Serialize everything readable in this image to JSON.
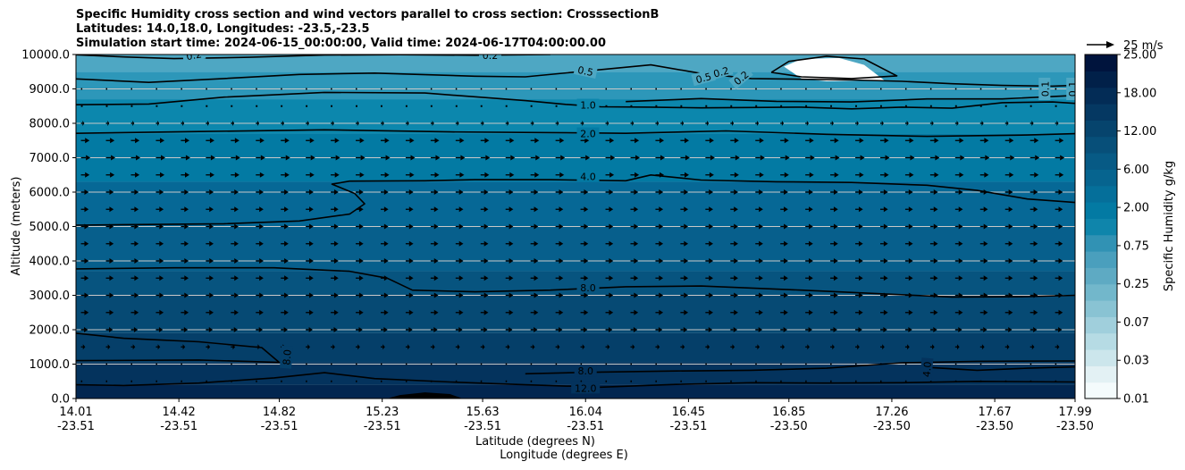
{
  "chart_data": {
    "type": "heatmap",
    "title_lines": [
      "Specific Humidity cross section and wind vectors parallel to cross section: CrosssectionB",
      "Latitudes: 14.0,18.0, Longitudes: -23.5,-23.5",
      "Simulation start time: 2024-06-15_00:00:00, Valid time: 2024-06-17T04:00:00.00"
    ],
    "ylabel": "Altitude (meters)",
    "xlabel_lines": [
      "Latitude (degrees N)",
      "Longitude (degrees E)"
    ],
    "ylim": [
      0,
      10000
    ],
    "y_ticks": [
      "0.0",
      "1000.0",
      "2000.0",
      "3000.0",
      "4000.0",
      "5000.0",
      "6000.0",
      "7000.0",
      "8000.0",
      "9000.0",
      "10000.0"
    ],
    "x_ticks": [
      {
        "lat": "14.01",
        "lon": "-23.51"
      },
      {
        "lat": "14.42",
        "lon": "-23.51"
      },
      {
        "lat": "14.82",
        "lon": "-23.51"
      },
      {
        "lat": "15.23",
        "lon": "-23.51"
      },
      {
        "lat": "15.63",
        "lon": "-23.51"
      },
      {
        "lat": "16.04",
        "lon": "-23.51"
      },
      {
        "lat": "16.45",
        "lon": "-23.51"
      },
      {
        "lat": "16.85",
        "lon": "-23.50"
      },
      {
        "lat": "17.26",
        "lon": "-23.50"
      },
      {
        "lat": "17.67",
        "lon": "-23.50"
      },
      {
        "lat": "17.99",
        "lon": "-23.50"
      }
    ],
    "colorbar": {
      "label": "Specific Humidity g/kg",
      "tick_labels": [
        "0.01",
        "0.03",
        "0.07",
        "0.25",
        "0.75",
        "2.00",
        "6.00",
        "12.00",
        "18.00",
        "25.00"
      ],
      "colors": [
        "#f4fbfc",
        "#e3f1f4",
        "#cce6ec",
        "#b6dbe4",
        "#a0cfdc",
        "#89c3d3",
        "#72b7cb",
        "#5eaac3",
        "#4a9fbd",
        "#3192b4",
        "#0f85ab",
        "#037aa3",
        "#056f9a",
        "#06648f",
        "#075a85",
        "#074f79",
        "#06446d",
        "#053862",
        "#032c56",
        "#012049",
        "#00143d"
      ]
    },
    "quiver_key": {
      "label": "25 m/s"
    },
    "contour_labels": [
      {
        "text": "0.2",
        "lat": 14.48,
        "alt": 9980,
        "rot": -10
      },
      {
        "text": "0.2",
        "lat": 15.66,
        "alt": 9980,
        "rot": 0
      },
      {
        "text": "0.5",
        "lat": 16.04,
        "alt": 9520,
        "rot": 12
      },
      {
        "text": "0.5",
        "lat": 16.51,
        "alt": 9320,
        "rot": -15
      },
      {
        "text": "0.2",
        "lat": 16.58,
        "alt": 9490,
        "rot": -15
      },
      {
        "text": "0.2",
        "lat": 16.66,
        "alt": 9320,
        "rot": -40
      },
      {
        "text": "0.1",
        "lat": 17.87,
        "alt": 9000,
        "rot": -90
      },
      {
        "text": "0.1",
        "lat": 17.98,
        "alt": 9000,
        "rot": -90
      },
      {
        "text": "1.0",
        "lat": 16.05,
        "alt": 8530,
        "rot": 0
      },
      {
        "text": "2.0",
        "lat": 16.05,
        "alt": 7700,
        "rot": 0
      },
      {
        "text": "4.0",
        "lat": 16.05,
        "alt": 6450,
        "rot": 0
      },
      {
        "text": "8.0",
        "lat": 16.05,
        "alt": 3220,
        "rot": 0
      },
      {
        "text": "8.0",
        "lat": 14.85,
        "alt": 1200,
        "rot": -85
      },
      {
        "text": "8.0",
        "lat": 16.04,
        "alt": 800,
        "rot": 0
      },
      {
        "text": "4.0",
        "lat": 17.4,
        "alt": 850,
        "rot": -85
      },
      {
        "text": "12.0",
        "lat": 16.04,
        "alt": 300,
        "rot": 0
      }
    ],
    "contours": [
      {
        "level": 0.2,
        "points": [
          [
            14.01,
            9992
          ],
          [
            14.2,
            9930
          ],
          [
            14.4,
            9880
          ],
          [
            14.7,
            9920
          ],
          [
            15.0,
            9985
          ],
          [
            15.3,
            9995
          ],
          [
            15.6,
            9978
          ],
          [
            15.9,
            10000
          ]
        ]
      },
      {
        "level": 0.5,
        "points": [
          [
            14.01,
            9290
          ],
          [
            14.3,
            9190
          ],
          [
            14.6,
            9300
          ],
          [
            14.9,
            9420
          ],
          [
            15.2,
            9460
          ],
          [
            15.6,
            9370
          ],
          [
            15.8,
            9350
          ],
          [
            16.1,
            9560
          ],
          [
            16.3,
            9700
          ],
          [
            16.5,
            9450
          ],
          [
            16.7,
            9300
          ],
          [
            16.9,
            9280
          ],
          [
            17.1,
            9260
          ],
          [
            17.3,
            9220
          ],
          [
            17.5,
            9150
          ],
          [
            17.7,
            9100
          ],
          [
            17.9,
            9080
          ],
          [
            17.99,
            9100
          ]
        ]
      },
      {
        "level": 1.0,
        "points": [
          [
            14.01,
            8540
          ],
          [
            14.3,
            8560
          ],
          [
            14.6,
            8760
          ],
          [
            15.0,
            8900
          ],
          [
            15.4,
            8880
          ],
          [
            15.8,
            8660
          ],
          [
            15.96,
            8550
          ],
          [
            16.1,
            8480
          ],
          [
            16.3,
            8470
          ],
          [
            16.5,
            8450
          ],
          [
            16.7,
            8460
          ],
          [
            16.9,
            8470
          ],
          [
            17.1,
            8420
          ],
          [
            17.3,
            8470
          ],
          [
            17.5,
            8440
          ],
          [
            17.7,
            8600
          ],
          [
            17.9,
            8620
          ],
          [
            17.99,
            8580
          ]
        ]
      },
      {
        "level": 1.0,
        "points": [
          [
            16.2,
            8630
          ],
          [
            16.5,
            8720
          ],
          [
            16.8,
            8640
          ],
          [
            17.1,
            8620
          ],
          [
            17.4,
            8710
          ],
          [
            17.7,
            8710
          ],
          [
            17.99,
            8810
          ]
        ]
      },
      {
        "level": 2.0,
        "points": [
          [
            14.01,
            7710
          ],
          [
            14.5,
            7760
          ],
          [
            15.0,
            7810
          ],
          [
            15.5,
            7750
          ],
          [
            15.9,
            7730
          ],
          [
            16.2,
            7710
          ],
          [
            16.6,
            7780
          ],
          [
            17.0,
            7680
          ],
          [
            17.4,
            7620
          ],
          [
            17.8,
            7660
          ],
          [
            17.99,
            7700
          ]
        ]
      },
      {
        "level": 4.0,
        "points": [
          [
            14.01,
            5040
          ],
          [
            14.3,
            5060
          ],
          [
            14.6,
            5080
          ],
          [
            14.9,
            5160
          ],
          [
            15.1,
            5360
          ],
          [
            15.16,
            5660
          ],
          [
            15.12,
            5960
          ],
          [
            15.03,
            6230
          ],
          [
            15.1,
            6320
          ],
          [
            15.4,
            6330
          ],
          [
            15.6,
            6360
          ],
          [
            15.9,
            6360
          ],
          [
            16.2,
            6330
          ],
          [
            16.3,
            6500
          ],
          [
            16.5,
            6350
          ],
          [
            16.8,
            6300
          ],
          [
            17.1,
            6280
          ],
          [
            17.4,
            6200
          ],
          [
            17.6,
            6050
          ],
          [
            17.8,
            5800
          ],
          [
            17.99,
            5700
          ]
        ]
      },
      {
        "level": 8.0,
        "points": [
          [
            14.01,
            3770
          ],
          [
            14.4,
            3800
          ],
          [
            14.8,
            3800
          ],
          [
            15.1,
            3700
          ],
          [
            15.25,
            3500
          ],
          [
            15.35,
            3150
          ],
          [
            15.6,
            3100
          ],
          [
            15.9,
            3150
          ],
          [
            16.2,
            3250
          ],
          [
            16.5,
            3270
          ],
          [
            16.9,
            3150
          ],
          [
            17.2,
            3050
          ],
          [
            17.5,
            2950
          ],
          [
            17.8,
            2960
          ],
          [
            17.99,
            3000
          ]
        ]
      },
      {
        "level": 8.0,
        "points": [
          [
            14.01,
            1900
          ],
          [
            14.2,
            1750
          ],
          [
            14.5,
            1650
          ],
          [
            14.75,
            1480
          ],
          [
            14.82,
            1050
          ],
          [
            14.5,
            1120
          ],
          [
            14.01,
            1100
          ]
        ]
      },
      {
        "level": 8.0,
        "points": [
          [
            15.8,
            720
          ],
          [
            16.1,
            770
          ],
          [
            16.4,
            800
          ],
          [
            16.7,
            820
          ],
          [
            17.0,
            880
          ],
          [
            17.3,
            1040
          ],
          [
            17.6,
            1080
          ],
          [
            17.99,
            1090
          ]
        ]
      },
      {
        "level": 4.0,
        "points": [
          [
            17.42,
            900
          ],
          [
            17.6,
            820
          ],
          [
            17.8,
            880
          ],
          [
            17.99,
            920
          ]
        ]
      },
      {
        "level": 12.0,
        "points": [
          [
            14.01,
            400
          ],
          [
            14.2,
            380
          ],
          [
            14.5,
            450
          ],
          [
            14.8,
            600
          ],
          [
            15.0,
            750
          ],
          [
            15.2,
            580
          ],
          [
            15.5,
            480
          ],
          [
            15.8,
            400
          ],
          [
            16.1,
            330
          ],
          [
            16.4,
            410
          ],
          [
            16.7,
            460
          ],
          [
            17.0,
            450
          ],
          [
            17.3,
            460
          ],
          [
            17.6,
            500
          ],
          [
            17.99,
            480
          ]
        ]
      },
      {
        "level": 0.2,
        "points": [
          [
            16.78,
            9480
          ],
          [
            16.85,
            9800
          ],
          [
            17.0,
            9950
          ],
          [
            17.15,
            9870
          ],
          [
            17.28,
            9380
          ],
          [
            17.1,
            9300
          ],
          [
            16.9,
            9350
          ],
          [
            16.78,
            9480
          ]
        ]
      }
    ],
    "dry_pocket": [
      [
        16.9,
        9300
      ],
      [
        16.83,
        9650
      ],
      [
        16.9,
        9870
      ],
      [
        17.05,
        9900
      ],
      [
        17.15,
        9700
      ],
      [
        17.23,
        9250
      ],
      [
        17.0,
        9220
      ],
      [
        16.9,
        9300
      ]
    ],
    "shading_bands": [
      {
        "top": 10000,
        "bottom": 9500,
        "color": "#4ea7c3"
      },
      {
        "top": 9500,
        "bottom": 8700,
        "color": "#2d97b9"
      },
      {
        "top": 8700,
        "bottom": 7700,
        "color": "#0c87ad"
      },
      {
        "top": 7700,
        "bottom": 6300,
        "color": "#037aa3"
      },
      {
        "top": 6300,
        "bottom": 5000,
        "color": "#066896"
      },
      {
        "top": 5000,
        "bottom": 3700,
        "color": "#075f8c"
      },
      {
        "top": 3700,
        "bottom": 3000,
        "color": "#07547f"
      },
      {
        "top": 3000,
        "bottom": 1900,
        "color": "#064a74"
      },
      {
        "top": 1900,
        "bottom": 1050,
        "color": "#053f69"
      },
      {
        "top": 1050,
        "bottom": 400,
        "color": "#04335d"
      },
      {
        "top": 400,
        "bottom": 0,
        "color": "#022650"
      }
    ],
    "wind_vectors": {
      "lat_start": 14.01,
      "lat_end": 17.99,
      "columns": 40,
      "levels": [
        {
          "alt": 9000,
          "u": 1
        },
        {
          "alt": 8500,
          "u": 2
        },
        {
          "alt": 8000,
          "u": 4
        },
        {
          "alt": 7500,
          "u": 10
        },
        {
          "alt": 7000,
          "u": 11
        },
        {
          "alt": 6500,
          "u": 10
        },
        {
          "alt": 6000,
          "u": 9
        },
        {
          "alt": 5500,
          "u": 9
        },
        {
          "alt": 5000,
          "u": 9
        },
        {
          "alt": 4500,
          "u": 9
        },
        {
          "alt": 4000,
          "u": 9
        },
        {
          "alt": 3500,
          "u": 9
        },
        {
          "alt": 3000,
          "u": 9
        },
        {
          "alt": 2500,
          "u": 9
        },
        {
          "alt": 2000,
          "u": 8
        },
        {
          "alt": 1500,
          "u": 5
        },
        {
          "alt": 1000,
          "u": 1
        },
        {
          "alt": 500,
          "u": 1
        }
      ]
    },
    "terrain": [
      [
        15.25,
        0
      ],
      [
        15.3,
        100
      ],
      [
        15.4,
        180
      ],
      [
        15.5,
        130
      ],
      [
        15.55,
        0
      ]
    ]
  }
}
